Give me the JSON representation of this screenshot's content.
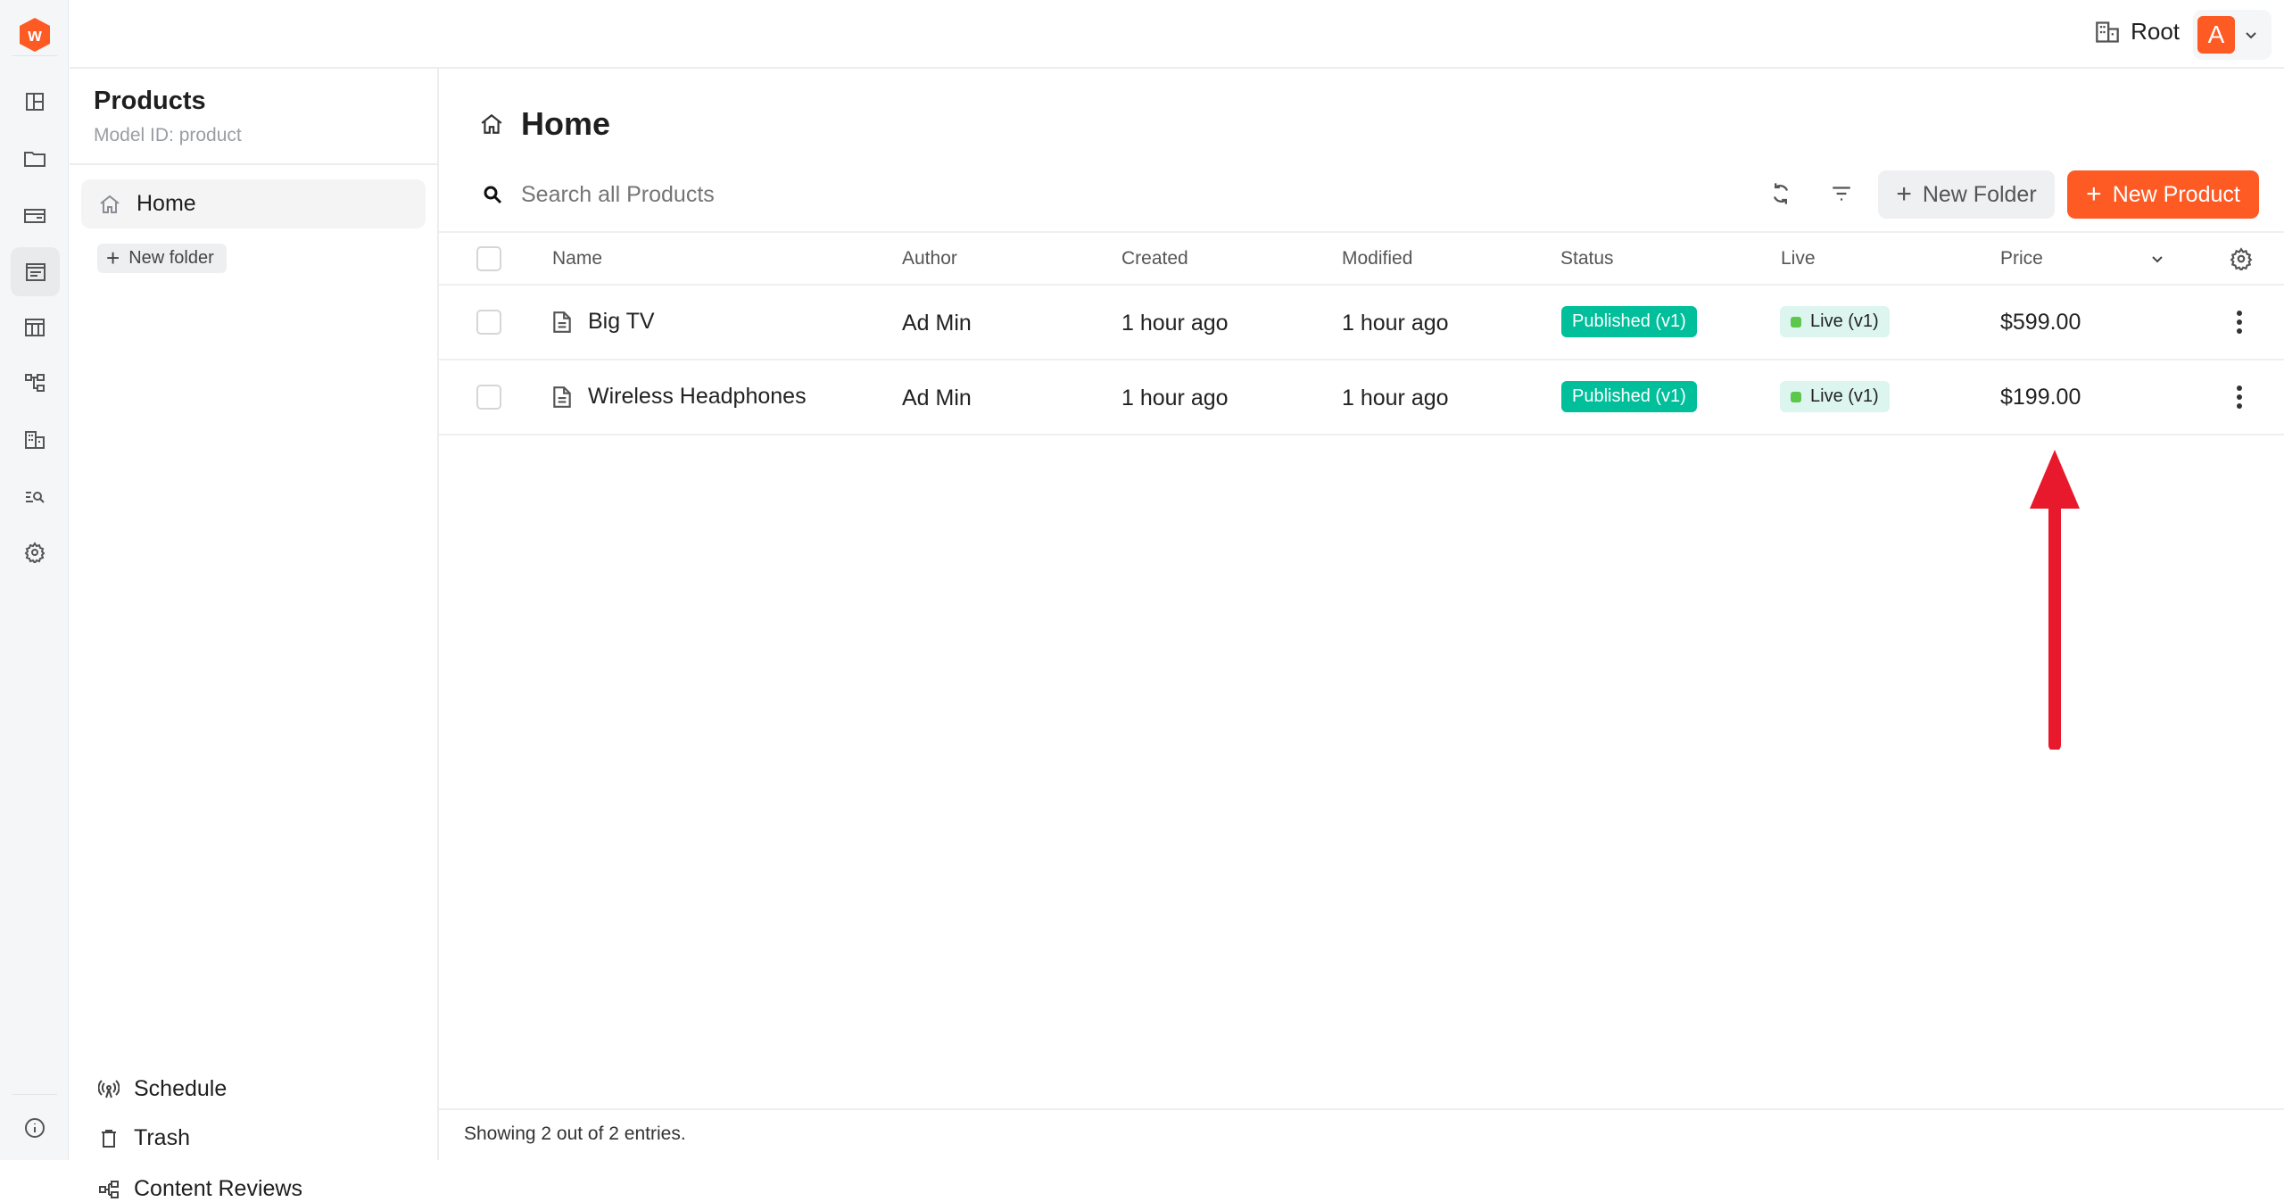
{
  "brand": {
    "logo_letter": "w",
    "color": "#fd5a24"
  },
  "rail": {
    "items": [
      "dashboard-icon",
      "folder-icon",
      "card-icon",
      "content-icon",
      "table-icon",
      "hierarchy-icon",
      "tenant-icon",
      "search-list-icon",
      "settings-icon"
    ],
    "active": 3,
    "footer": "info-icon"
  },
  "topbar": {
    "tenant": "Root",
    "avatar": "A"
  },
  "sidebar": {
    "title": "Products",
    "subtitle": "Model ID: product",
    "home": "Home",
    "new_folder": "New folder",
    "bottom": [
      {
        "label": "Schedule",
        "icon": "broadcast-icon"
      },
      {
        "label": "Trash",
        "icon": "trash-icon"
      },
      {
        "label": "Content Reviews",
        "icon": "hierarchy-icon"
      }
    ]
  },
  "main": {
    "title": "Home",
    "search_placeholder": "Search all Products",
    "new_folder": "New Folder",
    "new_product": "New Product",
    "columns": [
      "Name",
      "Author",
      "Created",
      "Modified",
      "Status",
      "Live",
      "Price"
    ],
    "rows": [
      {
        "name": "Big TV",
        "author": "Ad Min",
        "created": "1 hour ago",
        "modified": "1 hour ago",
        "status": "Published (v1)",
        "live": "Live (v1)",
        "price": "$599.00"
      },
      {
        "name": "Wireless Headphones",
        "author": "Ad Min",
        "created": "1 hour ago",
        "modified": "1 hour ago",
        "status": "Published (v1)",
        "live": "Live (v1)",
        "price": "$199.00"
      }
    ],
    "footer": "Showing 2 out of 2 entries."
  },
  "colors": {
    "accent": "#fd5a24",
    "published": "#00bf9a",
    "live_bg": "#ddf5ef",
    "annotation_arrow": "#e8192c"
  }
}
